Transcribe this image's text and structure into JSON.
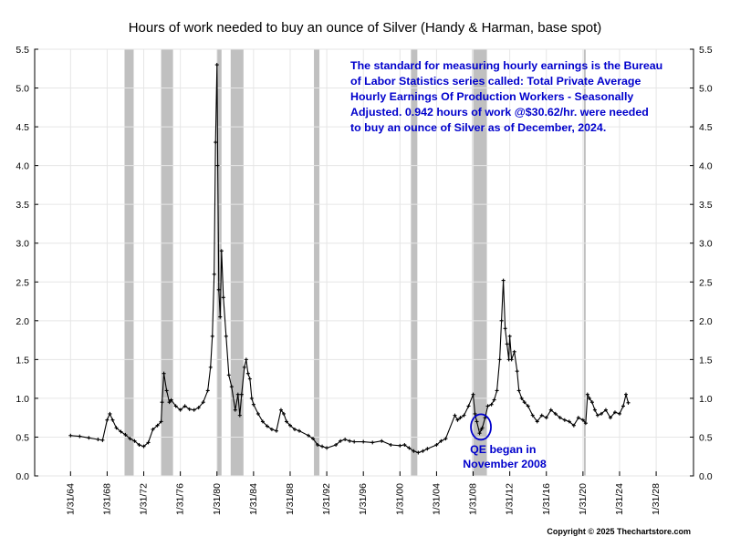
{
  "chart_data": {
    "type": "line",
    "title": "Hours of work needed to buy an ounce of Silver (Handy & Harman, base spot)",
    "xlabel": "",
    "ylabel": "",
    "xlim": [
      "1/31/1960",
      "1/31/2032"
    ],
    "ylim": [
      0,
      5.5
    ],
    "y_ticks": [
      "0.0",
      "0.5",
      "1.0",
      "1.5",
      "2.0",
      "2.5",
      "3.0",
      "3.5",
      "4.0",
      "4.5",
      "5.0",
      "5.5"
    ],
    "x_ticks": [
      "1/31/64",
      "1/31/68",
      "1/31/72",
      "1/31/76",
      "1/31/80",
      "1/31/84",
      "1/31/88",
      "1/31/92",
      "1/31/96",
      "1/31/00",
      "1/31/04",
      "1/31/08",
      "1/31/12",
      "1/31/16",
      "1/31/20",
      "1/31/24",
      "1/31/28"
    ],
    "x_tick_years": [
      1964,
      1968,
      1972,
      1976,
      1980,
      1984,
      1988,
      1992,
      1996,
      2000,
      2004,
      2008,
      2012,
      2016,
      2020,
      2024,
      2028
    ],
    "grid": true,
    "legend": "none",
    "line_color": "#000000",
    "recession_color": "#c0c0c0",
    "recessions": [
      {
        "start": 1969.9,
        "end": 1970.9
      },
      {
        "start": 1973.9,
        "end": 1975.2
      },
      {
        "start": 1980.0,
        "end": 1980.5
      },
      {
        "start": 1981.5,
        "end": 1982.9
      },
      {
        "start": 1990.6,
        "end": 1991.2
      },
      {
        "start": 2001.2,
        "end": 2001.9
      },
      {
        "start": 2007.9,
        "end": 2009.5
      },
      {
        "start": 2020.1,
        "end": 2020.3
      }
    ],
    "series": [
      {
        "x": [
          1964.0,
          1965.0,
          1966.0,
          1967.0,
          1967.5,
          1968.0,
          1968.3,
          1968.6,
          1969.0,
          1969.5,
          1970.0,
          1970.5,
          1971.0,
          1971.5,
          1972.0,
          1972.5,
          1973.0,
          1973.5,
          1973.9,
          1974.0,
          1974.2,
          1974.5,
          1974.8,
          1975.0,
          1975.5,
          1976.0,
          1976.5,
          1977.0,
          1977.5,
          1978.0,
          1978.5,
          1979.0,
          1979.3,
          1979.5,
          1979.7,
          1979.85,
          1980.0,
          1980.08,
          1980.2,
          1980.35,
          1980.5,
          1980.7,
          1981.0,
          1981.3,
          1981.6,
          1982.0,
          1982.3,
          1982.5,
          1982.7,
          1983.0,
          1983.2,
          1983.4,
          1983.6,
          1983.8,
          1984.0,
          1984.5,
          1985.0,
          1985.5,
          1986.0,
          1986.5,
          1987.0,
          1987.3,
          1987.6,
          1988.0,
          1988.5,
          1989.0,
          1990.0,
          1990.5,
          1991.0,
          1991.5,
          1992.0,
          1993.0,
          1993.5,
          1994.0,
          1994.5,
          1995.0,
          1996.0,
          1997.0,
          1998.0,
          1999.0,
          2000.0,
          2000.5,
          2001.0,
          2001.5,
          2002.0,
          2002.5,
          2003.0,
          2004.0,
          2004.5,
          2005.0,
          2006.0,
          2006.3,
          2006.6,
          2007.0,
          2007.5,
          2008.0,
          2008.2,
          2008.4,
          2008.7,
          2008.9,
          2009.0,
          2009.3,
          2009.6,
          2010.0,
          2010.3,
          2010.6,
          2010.9,
          2011.1,
          2011.3,
          2011.5,
          2011.7,
          2011.9,
          2012.0,
          2012.2,
          2012.5,
          2012.8,
          2013.0,
          2013.3,
          2013.6,
          2014.0,
          2014.5,
          2015.0,
          2015.5,
          2016.0,
          2016.5,
          2017.0,
          2017.5,
          2018.0,
          2018.5,
          2019.0,
          2019.5,
          2020.0,
          2020.3,
          2020.5,
          2020.7,
          2021.0,
          2021.3,
          2021.6,
          2022.0,
          2022.5,
          2023.0,
          2023.5,
          2024.0,
          2024.4,
          2024.7,
          2024.95
        ],
        "values": [
          0.52,
          0.51,
          0.49,
          0.47,
          0.46,
          0.72,
          0.8,
          0.72,
          0.62,
          0.57,
          0.53,
          0.48,
          0.45,
          0.4,
          0.38,
          0.43,
          0.6,
          0.65,
          0.7,
          0.95,
          1.32,
          1.1,
          0.95,
          0.98,
          0.9,
          0.85,
          0.9,
          0.86,
          0.85,
          0.88,
          0.95,
          1.1,
          1.4,
          1.8,
          2.6,
          4.3,
          5.3,
          4.0,
          2.4,
          2.05,
          2.9,
          2.3,
          1.8,
          1.3,
          1.15,
          0.85,
          1.05,
          0.78,
          1.05,
          1.4,
          1.5,
          1.32,
          1.25,
          1.0,
          0.92,
          0.8,
          0.7,
          0.64,
          0.6,
          0.58,
          0.85,
          0.8,
          0.7,
          0.65,
          0.6,
          0.58,
          0.52,
          0.48,
          0.4,
          0.38,
          0.36,
          0.4,
          0.45,
          0.47,
          0.45,
          0.44,
          0.44,
          0.43,
          0.45,
          0.4,
          0.39,
          0.4,
          0.36,
          0.32,
          0.3,
          0.32,
          0.35,
          0.4,
          0.45,
          0.48,
          0.78,
          0.72,
          0.75,
          0.78,
          0.9,
          1.05,
          0.8,
          0.7,
          0.55,
          0.6,
          0.62,
          0.75,
          0.9,
          0.92,
          0.98,
          1.1,
          1.5,
          2.0,
          2.52,
          1.9,
          1.7,
          1.5,
          1.8,
          1.5,
          1.6,
          1.35,
          1.1,
          1.0,
          0.95,
          0.9,
          0.78,
          0.7,
          0.78,
          0.75,
          0.85,
          0.8,
          0.75,
          0.72,
          0.7,
          0.65,
          0.75,
          0.72,
          0.68,
          1.05,
          1.0,
          0.95,
          0.85,
          0.78,
          0.8,
          0.85,
          0.75,
          0.82,
          0.8,
          0.9,
          1.05,
          0.942
        ]
      }
    ],
    "annotations": {
      "note_lines": [
        "The standard for measuring hourly earnings is the Bureau",
        "of Labor Statistics series called:  Total Private Average",
        "Hourly Earnings Of Production Workers - Seasonally",
        "Adjusted.  0.942 hours of work @$30.62/hr. were needed",
        "to buy an ounce of Silver as of December, 2024."
      ],
      "qe_lines": [
        "QE began in",
        "November 2008"
      ],
      "qe_marker": {
        "x": 2008.85,
        "y": 0.63
      },
      "copyright": "Copyright © 2025 Thechartstore.com"
    }
  }
}
